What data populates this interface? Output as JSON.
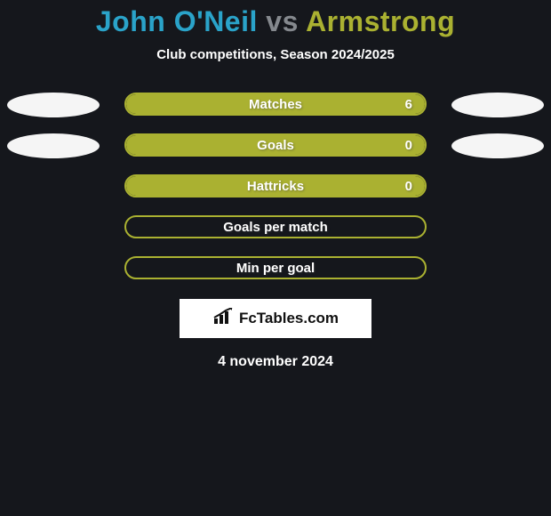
{
  "background_color": "#15171c",
  "title": {
    "prefix": "John O'Neil",
    "vs_word": "vs",
    "suffix": "Armstrong",
    "prefix_color": "#2aa3c9",
    "vs_color": "#85898e",
    "suffix_color": "#aab131"
  },
  "subtitle": "Club competitions, Season 2024/2025",
  "bar_style": {
    "border_color": "#aab131",
    "border_width": 2,
    "fill_color": "#aab131",
    "radius": 14,
    "label_fontsize": 15
  },
  "blob_colors": {
    "left": "#f5f5f5",
    "right": "#f5f5f5"
  },
  "rows": [
    {
      "label": "Matches",
      "value": "6",
      "fill_pct": 100,
      "show_value": true,
      "show_blobs": true
    },
    {
      "label": "Goals",
      "value": "0",
      "fill_pct": 100,
      "show_value": true,
      "show_blobs": true
    },
    {
      "label": "Hattricks",
      "value": "0",
      "fill_pct": 100,
      "show_value": true,
      "show_blobs": false
    },
    {
      "label": "Goals per match",
      "value": "",
      "fill_pct": 0,
      "show_value": false,
      "show_blobs": false
    },
    {
      "label": "Min per goal",
      "value": "",
      "fill_pct": 0,
      "show_value": false,
      "show_blobs": false
    }
  ],
  "badge": {
    "text": "FcTables.com",
    "bg": "#ffffff",
    "color": "#111111"
  },
  "date": "4 november 2024"
}
